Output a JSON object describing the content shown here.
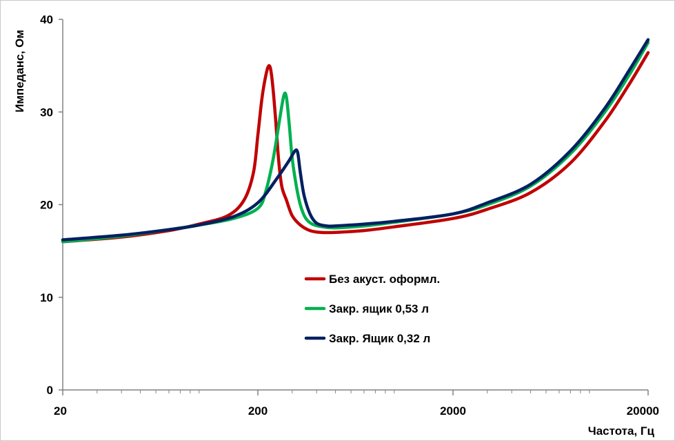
{
  "chart_data": {
    "type": "line",
    "title": "",
    "xlabel": "Частота, Гц",
    "ylabel": "Импеданс, Ом",
    "xscale": "log",
    "xlim": [
      20,
      20000
    ],
    "ylim": [
      0,
      40
    ],
    "grid": false,
    "legend_position": "center",
    "x_ticks": [
      20,
      200,
      2000,
      20000
    ],
    "x_tick_labels": [
      "20",
      "200",
      "2000",
      "20000"
    ],
    "y_ticks": [
      0,
      10,
      20,
      30,
      40
    ],
    "y_tick_labels": [
      "0",
      "10",
      "20",
      "30",
      "40"
    ],
    "series": [
      {
        "name": "Без акуст. оформл.",
        "color": "#c00000",
        "points": [
          [
            20,
            16.0
          ],
          [
            40,
            16.5
          ],
          [
            70,
            17.2
          ],
          [
            100,
            17.9
          ],
          [
            140,
            18.8
          ],
          [
            170,
            20.5
          ],
          [
            190,
            23.5
          ],
          [
            200,
            27.5
          ],
          [
            210,
            31.5
          ],
          [
            220,
            34.0
          ],
          [
            228,
            35.0
          ],
          [
            235,
            34.0
          ],
          [
            245,
            30.0
          ],
          [
            255,
            25.0
          ],
          [
            265,
            22.0
          ],
          [
            280,
            20.5
          ],
          [
            300,
            18.8
          ],
          [
            330,
            17.8
          ],
          [
            370,
            17.2
          ],
          [
            420,
            17.0
          ],
          [
            500,
            17.0
          ],
          [
            700,
            17.2
          ],
          [
            1000,
            17.6
          ],
          [
            2000,
            18.5
          ],
          [
            3000,
            19.5
          ],
          [
            5000,
            21.3
          ],
          [
            8000,
            24.5
          ],
          [
            12000,
            29.0
          ],
          [
            16000,
            33.0
          ],
          [
            20000,
            36.4
          ]
        ]
      },
      {
        "name": "Закр. ящик 0,53 л",
        "color": "#00b050",
        "points": [
          [
            20,
            16.0
          ],
          [
            40,
            16.6
          ],
          [
            70,
            17.3
          ],
          [
            100,
            17.8
          ],
          [
            150,
            18.5
          ],
          [
            200,
            19.6
          ],
          [
            220,
            21.5
          ],
          [
            240,
            25.0
          ],
          [
            260,
            29.5
          ],
          [
            272,
            31.8
          ],
          [
            280,
            31.6
          ],
          [
            290,
            28.5
          ],
          [
            300,
            25.0
          ],
          [
            315,
            22.0
          ],
          [
            330,
            20.0
          ],
          [
            350,
            18.6
          ],
          [
            380,
            17.9
          ],
          [
            430,
            17.6
          ],
          [
            500,
            17.5
          ],
          [
            700,
            17.7
          ],
          [
            1000,
            18.1
          ],
          [
            2000,
            19.0
          ],
          [
            3000,
            20.0
          ],
          [
            5000,
            22.0
          ],
          [
            8000,
            25.5
          ],
          [
            12000,
            30.0
          ],
          [
            16000,
            34.0
          ],
          [
            20000,
            37.5
          ]
        ]
      },
      {
        "name": "Закр. Ящик 0,32 л",
        "color": "#002060",
        "points": [
          [
            20,
            16.2
          ],
          [
            40,
            16.7
          ],
          [
            70,
            17.3
          ],
          [
            100,
            17.8
          ],
          [
            150,
            18.7
          ],
          [
            200,
            20.2
          ],
          [
            250,
            22.8
          ],
          [
            290,
            24.8
          ],
          [
            310,
            25.8
          ],
          [
            320,
            25.6
          ],
          [
            330,
            23.5
          ],
          [
            345,
            21.0
          ],
          [
            370,
            19.0
          ],
          [
            400,
            18.0
          ],
          [
            450,
            17.7
          ],
          [
            500,
            17.7
          ],
          [
            700,
            17.9
          ],
          [
            1000,
            18.2
          ],
          [
            2000,
            19.0
          ],
          [
            3000,
            20.2
          ],
          [
            5000,
            22.2
          ],
          [
            8000,
            25.8
          ],
          [
            12000,
            30.4
          ],
          [
            16000,
            34.5
          ],
          [
            20000,
            37.8
          ]
        ]
      }
    ]
  }
}
